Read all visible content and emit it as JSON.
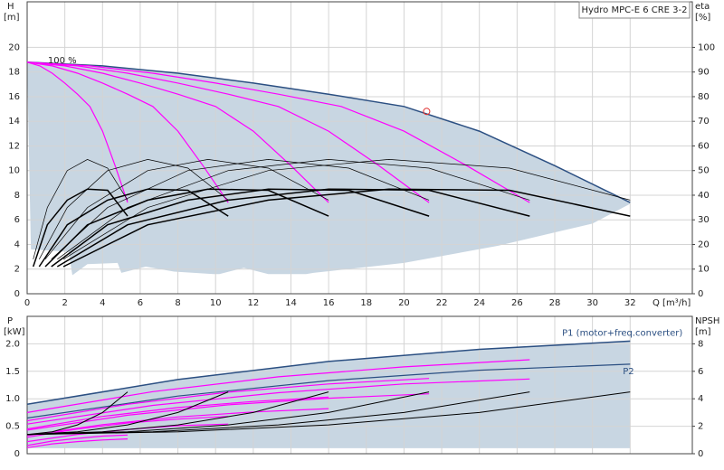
{
  "chart_data": [
    {
      "type": "line",
      "title": "Hydro MPC-E 6 CRE 3-2",
      "annotation": "100 %",
      "xlabel": "Q [m³/h]",
      "ylabel": "H",
      "yunit": "[m]",
      "y2label": "eta",
      "y2unit": "[%]",
      "xlim": [
        0,
        35.3
      ],
      "xticks": [
        0,
        2,
        4,
        6,
        8,
        10,
        12,
        14,
        16,
        18,
        20,
        22,
        24,
        26,
        28,
        30,
        32
      ],
      "show_xtick_labels": true,
      "ylim": [
        0,
        23.7
      ],
      "yticks": [
        0,
        2,
        4,
        6,
        8,
        10,
        12,
        14,
        16,
        18,
        20
      ],
      "y2lim": [
        0,
        118.5
      ],
      "y2ticks": [
        0,
        10,
        20,
        30,
        40,
        50,
        60,
        70,
        80,
        90,
        100
      ],
      "grid": true,
      "area": {
        "color": "#c8d6e2",
        "x": [
          0.2,
          2.2,
          2.4,
          3.2,
          4.8,
          5.0,
          6.3,
          7.8,
          9.9,
          10.2,
          11.5,
          12.8,
          14.8,
          15.2,
          20,
          25,
          30,
          32
        ],
        "lower": [
          3.6,
          3.4,
          1.5,
          2.4,
          2.5,
          1.7,
          2.2,
          1.8,
          1.6,
          1.6,
          2.1,
          1.6,
          1.6,
          1.7,
          2.5,
          3.9,
          5.7,
          7.3
        ]
      },
      "marker": {
        "x": 21.2,
        "y": 14.8,
        "color": "#e03030"
      },
      "series": [
        {
          "color": "#2b4f82",
          "width": 1.5,
          "x": [
            0,
            4,
            8,
            12,
            16,
            20,
            24,
            28,
            32
          ],
          "values": [
            18.8,
            18.5,
            17.9,
            17.1,
            16.2,
            15.2,
            13.2,
            10.4,
            7.4
          ]
        },
        {
          "color": "#ff00ff",
          "width": 1.2,
          "x": [
            0,
            0.67,
            1.33,
            2,
            2.67,
            3.33,
            4,
            4.67,
            5.33
          ],
          "values": [
            18.8,
            18.5,
            17.9,
            17.1,
            16.2,
            15.2,
            13.2,
            10.4,
            7.4
          ]
        },
        {
          "color": "#ff00ff",
          "width": 1.2,
          "x": [
            0,
            1.33,
            2.67,
            4,
            5.33,
            6.67,
            8,
            9.33,
            10.67
          ],
          "values": [
            18.8,
            18.5,
            17.9,
            17.1,
            16.2,
            15.2,
            13.2,
            10.4,
            7.4
          ]
        },
        {
          "color": "#ff00ff",
          "width": 1.2,
          "x": [
            0,
            2,
            4,
            6,
            8,
            10,
            12,
            14,
            16
          ],
          "values": [
            18.8,
            18.5,
            17.9,
            17.1,
            16.2,
            15.2,
            13.2,
            10.4,
            7.4
          ]
        },
        {
          "color": "#ff00ff",
          "width": 1.2,
          "x": [
            0,
            2.67,
            5.33,
            8,
            10.67,
            13.33,
            16,
            18.67,
            21.33
          ],
          "values": [
            18.8,
            18.5,
            17.9,
            17.1,
            16.2,
            15.2,
            13.2,
            10.4,
            7.4
          ]
        },
        {
          "color": "#ff00ff",
          "width": 1.2,
          "x": [
            0,
            3.33,
            6.67,
            10,
            13.33,
            16.67,
            20,
            23.33,
            26.67
          ],
          "values": [
            18.8,
            18.5,
            17.9,
            17.1,
            16.2,
            15.2,
            13.2,
            10.4,
            7.4
          ]
        },
        {
          "color": "#000000",
          "width": 0.7,
          "axis": "y2",
          "x": [
            0.32,
            1.07,
            2.13,
            3.2,
            4.27,
            5.33
          ],
          "values": [
            14,
            35,
            50,
            54.5,
            51,
            38
          ]
        },
        {
          "color": "#000000",
          "width": 0.7,
          "axis": "y2",
          "x": [
            0.64,
            2.13,
            4.27,
            6.4,
            8.53,
            10.67
          ],
          "values": [
            14,
            35,
            50,
            54.5,
            51,
            38
          ]
        },
        {
          "color": "#000000",
          "width": 0.7,
          "axis": "y2",
          "x": [
            0.96,
            3.2,
            6.4,
            9.6,
            12.8,
            16
          ],
          "values": [
            14,
            35,
            50,
            54.5,
            51,
            38
          ]
        },
        {
          "color": "#000000",
          "width": 0.7,
          "axis": "y2",
          "x": [
            1.28,
            4.27,
            8.53,
            12.8,
            17.07,
            21.33
          ],
          "values": [
            14,
            35,
            50,
            54.5,
            51,
            38
          ]
        },
        {
          "color": "#000000",
          "width": 0.7,
          "axis": "y2",
          "x": [
            1.6,
            5.33,
            10.67,
            16,
            21.33,
            26.67
          ],
          "values": [
            14,
            35,
            50,
            54.5,
            51,
            38
          ]
        },
        {
          "color": "#000000",
          "width": 0.7,
          "axis": "y2",
          "x": [
            1.92,
            6.4,
            12.8,
            19.2,
            25.6,
            32
          ],
          "values": [
            14,
            35,
            50,
            54.5,
            51,
            38
          ]
        },
        {
          "color": "#000000",
          "width": 1.5,
          "axis": "y2",
          "x": [
            0.32,
            1.07,
            2.13,
            3.2,
            4.27,
            5.33
          ],
          "values": [
            11,
            28,
            38,
            42.5,
            42,
            31.5
          ]
        },
        {
          "color": "#000000",
          "width": 1.5,
          "axis": "y2",
          "x": [
            0.64,
            2.13,
            4.27,
            6.4,
            8.53,
            10.67
          ],
          "values": [
            11,
            28,
            38,
            42.5,
            42,
            31.5
          ]
        },
        {
          "color": "#000000",
          "width": 1.5,
          "axis": "y2",
          "x": [
            0.96,
            3.2,
            6.4,
            9.6,
            12.8,
            16
          ],
          "values": [
            11,
            28,
            38,
            42.5,
            42,
            31.5
          ]
        },
        {
          "color": "#000000",
          "width": 1.5,
          "axis": "y2",
          "x": [
            1.28,
            4.27,
            8.53,
            12.8,
            17.07,
            21.33
          ],
          "values": [
            11,
            28,
            38,
            42.5,
            42,
            31.5
          ]
        },
        {
          "color": "#000000",
          "width": 1.5,
          "axis": "y2",
          "x": [
            1.6,
            5.33,
            10.67,
            16,
            21.33,
            26.67
          ],
          "values": [
            11,
            28,
            38,
            42.5,
            42,
            31.5
          ]
        },
        {
          "color": "#000000",
          "width": 1.5,
          "axis": "y2",
          "x": [
            1.92,
            6.4,
            12.8,
            19.2,
            25.6,
            32
          ],
          "values": [
            11,
            28,
            38,
            42.5,
            42,
            31.5
          ]
        }
      ]
    },
    {
      "type": "line",
      "ylabel": "P",
      "yunit": "[kW]",
      "y2label": "NPSH",
      "y2unit": "[m]",
      "xlim": [
        0,
        35.3
      ],
      "xticks": [
        0,
        2,
        4,
        6,
        8,
        10,
        12,
        14,
        16,
        18,
        20,
        22,
        24,
        26,
        28,
        30,
        32
      ],
      "show_xtick_labels": false,
      "ylim": [
        0,
        2.5
      ],
      "yticks": [
        0,
        0.5,
        {
          "value": 1,
          "label": "1.0"
        },
        1.5,
        {
          "value": 2,
          "label": "2.0"
        }
      ],
      "y2lim": [
        0,
        10
      ],
      "y2ticks": [
        0,
        2,
        4,
        6,
        8
      ],
      "grid": true,
      "area": {
        "color": "#c8d6e2",
        "x": [
          0,
          32
        ],
        "lower": [
          0.1,
          0.1
        ]
      },
      "series": [
        {
          "name": "P1 (motor+freq.converter)",
          "color": "#2b4f82",
          "width": 1.5,
          "x": [
            0,
            8,
            16,
            24,
            32
          ],
          "values": [
            0.9,
            1.35,
            1.68,
            1.9,
            2.05
          ]
        },
        {
          "name": "P2",
          "color": "#2b4f82",
          "width": 1.2,
          "x": [
            0,
            8,
            16,
            24,
            32
          ],
          "values": [
            0.65,
            1.05,
            1.33,
            1.52,
            1.63
          ]
        },
        {
          "color": "#ff00ff",
          "width": 1.2,
          "x": [
            0,
            1.33,
            2.67,
            4,
            5.33
          ],
          "values": [
            0.15,
            0.23,
            0.28,
            0.32,
            0.34
          ]
        },
        {
          "color": "#ff00ff",
          "width": 1.2,
          "x": [
            0,
            1.33,
            2.67,
            4,
            5.33
          ],
          "values": [
            0.11,
            0.18,
            0.22,
            0.25,
            0.27
          ]
        },
        {
          "color": "#ff00ff",
          "width": 1.2,
          "x": [
            0,
            2.67,
            5.33,
            8,
            10.67
          ],
          "values": [
            0.3,
            0.45,
            0.56,
            0.63,
            0.68
          ]
        },
        {
          "color": "#ff00ff",
          "width": 1.2,
          "x": [
            0,
            2.67,
            5.33,
            8,
            10.67
          ],
          "values": [
            0.22,
            0.35,
            0.44,
            0.51,
            0.54
          ]
        },
        {
          "color": "#ff00ff",
          "width": 1.2,
          "x": [
            0,
            4,
            8,
            12,
            16
          ],
          "values": [
            0.45,
            0.68,
            0.84,
            0.95,
            1.03
          ]
        },
        {
          "color": "#ff00ff",
          "width": 1.2,
          "x": [
            0,
            4,
            8,
            12,
            16
          ],
          "values": [
            0.33,
            0.53,
            0.67,
            0.76,
            0.82
          ]
        },
        {
          "color": "#ff00ff",
          "width": 1.2,
          "x": [
            0,
            5.33,
            10.67,
            16,
            21.33
          ],
          "values": [
            0.6,
            0.9,
            1.12,
            1.27,
            1.37
          ]
        },
        {
          "color": "#ff00ff",
          "width": 1.2,
          "x": [
            0,
            5.33,
            10.67,
            16,
            21.33
          ],
          "values": [
            0.43,
            0.7,
            0.89,
            1.01,
            1.09
          ]
        },
        {
          "color": "#ff00ff",
          "width": 1.2,
          "x": [
            0,
            6.67,
            13.33,
            20,
            26.67
          ],
          "values": [
            0.75,
            1.13,
            1.4,
            1.58,
            1.71
          ]
        },
        {
          "color": "#ff00ff",
          "width": 1.2,
          "x": [
            0,
            6.67,
            13.33,
            20,
            26.67
          ],
          "values": [
            0.54,
            0.88,
            1.11,
            1.27,
            1.36
          ]
        },
        {
          "color": "#000000",
          "width": 1,
          "axis": "y2",
          "x": [
            0,
            1.33,
            2.67,
            4,
            5.33
          ],
          "values": [
            1.4,
            1.6,
            2.1,
            3.0,
            4.5
          ]
        },
        {
          "color": "#000000",
          "width": 1,
          "axis": "y2",
          "x": [
            0,
            2.67,
            5.33,
            8,
            10.67
          ],
          "values": [
            1.4,
            1.6,
            2.1,
            3.0,
            4.5
          ]
        },
        {
          "color": "#000000",
          "width": 1,
          "axis": "y2",
          "x": [
            0,
            4,
            8,
            12,
            16
          ],
          "values": [
            1.4,
            1.6,
            2.1,
            3.0,
            4.5
          ]
        },
        {
          "color": "#000000",
          "width": 1,
          "axis": "y2",
          "x": [
            0,
            5.33,
            10.67,
            16,
            21.33
          ],
          "values": [
            1.4,
            1.6,
            2.1,
            3.0,
            4.5
          ]
        },
        {
          "color": "#000000",
          "width": 1,
          "axis": "y2",
          "x": [
            0,
            6.67,
            13.33,
            20,
            26.67
          ],
          "values": [
            1.4,
            1.6,
            2.1,
            3.0,
            4.5
          ]
        },
        {
          "color": "#000000",
          "width": 1,
          "axis": "y2",
          "x": [
            0,
            8,
            16,
            24,
            32
          ],
          "values": [
            1.4,
            1.6,
            2.1,
            3.0,
            4.5
          ]
        }
      ]
    }
  ]
}
